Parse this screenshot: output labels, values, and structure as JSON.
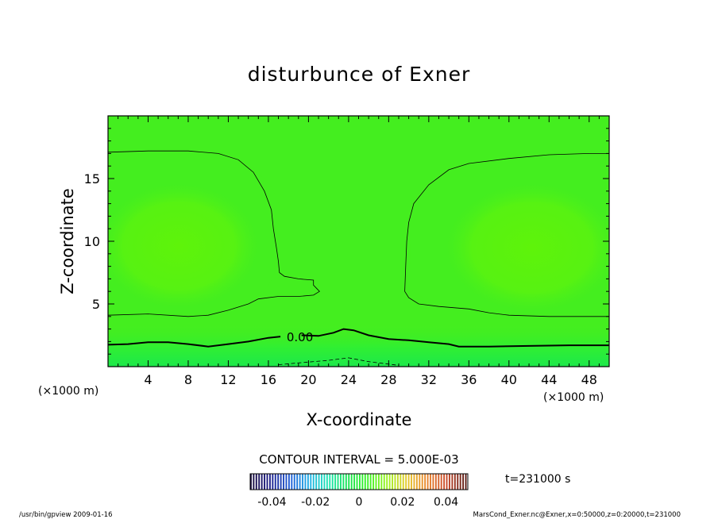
{
  "chart_data": {
    "type": "contour",
    "title": "disturbunce of Exner",
    "xlabel": "X-coordinate",
    "ylabel": "Z-coordinate",
    "xunit_left": "(×1000 m)",
    "xunit_right": "(×1000 m)",
    "xlim": [
      0,
      50
    ],
    "ylim": [
      0,
      20
    ],
    "xticks": [
      "4",
      "8",
      "12",
      "16",
      "20",
      "24",
      "28",
      "32",
      "36",
      "40",
      "44",
      "48"
    ],
    "yticks": [
      "5",
      "10",
      "15"
    ],
    "contour_interval_text": "CONTOUR INTERVAL = 5.000E-03",
    "contour_labels": [
      {
        "text": "0.00",
        "x": 17.5,
        "z": 2.4
      }
    ],
    "contours": [
      {
        "level": 0.005,
        "style": "solid",
        "points": [
          [
            0,
            4.1
          ],
          [
            4,
            4.2
          ],
          [
            8,
            4.0
          ],
          [
            10,
            4.1
          ],
          [
            12,
            4.5
          ],
          [
            14,
            5.0
          ],
          [
            15,
            5.4
          ],
          [
            17,
            5.6
          ],
          [
            19,
            5.6
          ],
          [
            20.5,
            5.7
          ],
          [
            21.1,
            6.0
          ],
          [
            20.5,
            6.5
          ],
          [
            20.5,
            6.9
          ],
          [
            19,
            7.0
          ],
          [
            17.6,
            7.2
          ],
          [
            17.1,
            7.5
          ],
          [
            17,
            8.4
          ],
          [
            16.8,
            9.5
          ],
          [
            16.5,
            11.0
          ],
          [
            16.3,
            12.5
          ],
          [
            15.6,
            14.0
          ],
          [
            14.5,
            15.5
          ],
          [
            13,
            16.5
          ],
          [
            11,
            17.0
          ],
          [
            8,
            17.2
          ],
          [
            4,
            17.2
          ],
          [
            0,
            17.1
          ]
        ]
      },
      {
        "level": 0.005,
        "style": "solid",
        "points": [
          [
            50,
            17.0
          ],
          [
            48,
            17.0
          ],
          [
            44,
            16.9
          ],
          [
            40,
            16.6
          ],
          [
            36,
            16.2
          ],
          [
            34,
            15.7
          ],
          [
            32,
            14.5
          ],
          [
            30.5,
            13.0
          ],
          [
            30,
            11.5
          ],
          [
            29.8,
            10.0
          ],
          [
            29.7,
            8.0
          ],
          [
            29.6,
            6.0
          ],
          [
            30,
            5.5
          ],
          [
            31,
            5.0
          ],
          [
            33,
            4.8
          ],
          [
            36,
            4.6
          ],
          [
            38,
            4.3
          ],
          [
            40,
            4.1
          ],
          [
            44,
            4.0
          ],
          [
            50,
            4.0
          ]
        ]
      },
      {
        "level": 0.0,
        "style": "thick",
        "points": [
          [
            0,
            1.75
          ],
          [
            2,
            1.8
          ],
          [
            4,
            1.95
          ],
          [
            6,
            1.95
          ],
          [
            8,
            1.8
          ],
          [
            10,
            1.6
          ],
          [
            12,
            1.8
          ],
          [
            14,
            2.0
          ],
          [
            16,
            2.3
          ],
          [
            17.2,
            2.4
          ]
        ]
      },
      {
        "level": 0.0,
        "style": "thick",
        "points": [
          [
            19.3,
            2.5
          ],
          [
            21,
            2.45
          ],
          [
            22.5,
            2.7
          ],
          [
            23.5,
            3.0
          ],
          [
            24.5,
            2.9
          ],
          [
            26,
            2.5
          ],
          [
            28,
            2.2
          ],
          [
            30,
            2.1
          ],
          [
            32,
            1.95
          ],
          [
            34,
            1.8
          ],
          [
            35,
            1.6
          ],
          [
            38,
            1.6
          ],
          [
            42,
            1.65
          ],
          [
            46,
            1.7
          ],
          [
            50,
            1.7
          ]
        ]
      },
      {
        "level": -0.005,
        "style": "dashed",
        "points": [
          [
            17,
            0.15
          ],
          [
            19,
            0.3
          ],
          [
            22,
            0.5
          ],
          [
            24,
            0.7
          ],
          [
            26,
            0.4
          ],
          [
            28,
            0.2
          ],
          [
            29,
            0.1
          ]
        ]
      }
    ],
    "colorbar": {
      "ticks": [
        "-0.04",
        "-0.02",
        "0",
        "0.02",
        "0.04"
      ],
      "values": [
        -0.04,
        -0.02,
        0,
        0.02,
        0.04
      ],
      "range": [
        -0.05,
        0.05
      ],
      "colors": [
        "#1a0b3d",
        "#1c1f8c",
        "#1f5bd6",
        "#1fb1e6",
        "#1ee6b0",
        "#17e34d",
        "#3af224",
        "#9ef21f",
        "#e6c82a",
        "#e8842c",
        "#c94a2a",
        "#5a1a14"
      ]
    },
    "field_colors": {
      "surface": "#3cf03a",
      "mid": "#44ee1f",
      "core": "#5cf20c",
      "band": "#30f030"
    },
    "time_text": "t=231000 s"
  },
  "footer": {
    "left": "/usr/bin/gpview   2009-01-16",
    "right": "MarsCond_Exner.nc@Exner,x=0:50000,z=0:20000,t=231000"
  }
}
